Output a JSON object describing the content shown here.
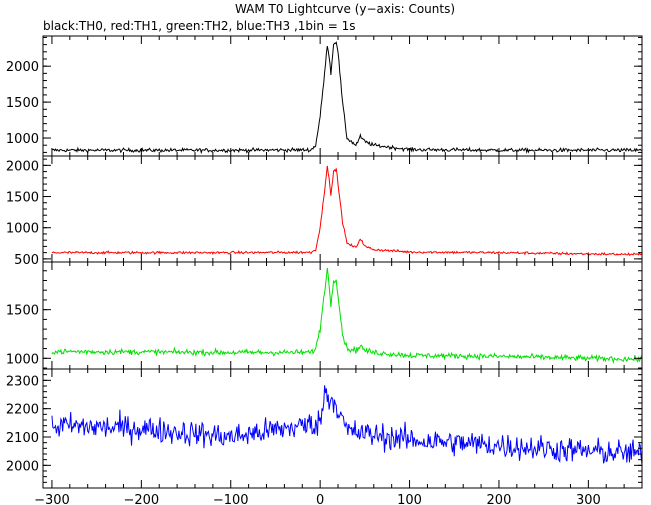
{
  "title": "WAM T0 Lightcurve (y−axis: Counts)",
  "subtitle": "black:TH0, red:TH1, green:TH2, blue:TH3 ,1bin = 1s",
  "chart_data": {
    "type": "line",
    "title": "WAM T0 Lightcurve (y−axis: Counts)",
    "subtitle": "black:TH0, red:TH1, green:TH2, blue:TH3 ,1bin = 1s",
    "xlabel": "",
    "ylabel": "Counts",
    "xlim": [
      -310,
      360
    ],
    "x_ticks": [
      -300,
      -200,
      -100,
      0,
      100,
      200,
      300
    ],
    "x_tick_labels": [
      "−300",
      "−200",
      "−100",
      "0",
      "100",
      "200",
      "300"
    ],
    "bin_seconds": 1,
    "panels": [
      {
        "channel": "TH0",
        "color": "#000000",
        "ylim": [
          750,
          2420
        ],
        "y_ticks": [
          1000,
          1500,
          2000
        ],
        "y_tick_labels": [
          "1000",
          "1500",
          "2000"
        ],
        "x": [
          -300,
          -100,
          -10,
          -5,
          0,
          5,
          8,
          10,
          12,
          15,
          18,
          20,
          25,
          30,
          40,
          45,
          50,
          60,
          100,
          200,
          300,
          360
        ],
        "y": [
          830,
          830,
          835,
          900,
          1300,
          1900,
          2300,
          2150,
          1900,
          2300,
          2350,
          2200,
          1500,
          1000,
          900,
          1020,
          950,
          900,
          840,
          830,
          830,
          830
        ],
        "noise": 25
      },
      {
        "channel": "TH1",
        "color": "#ff0000",
        "ylim": [
          450,
          2150
        ],
        "y_ticks": [
          500,
          1000,
          1500,
          2000
        ],
        "y_tick_labels": [
          "500",
          "1000",
          "1500",
          "2000"
        ],
        "x": [
          -300,
          -100,
          -10,
          -5,
          0,
          5,
          8,
          10,
          12,
          15,
          18,
          20,
          25,
          30,
          40,
          45,
          50,
          60,
          100,
          200,
          300,
          360
        ],
        "y": [
          600,
          600,
          605,
          650,
          1000,
          1600,
          2000,
          1800,
          1500,
          1900,
          1950,
          1700,
          1100,
          750,
          680,
          830,
          700,
          650,
          610,
          600,
          580,
          570
        ],
        "noise": 20
      },
      {
        "channel": "TH2",
        "color": "#00e000",
        "ylim": [
          890,
          1990
        ],
        "y_ticks": [
          1000,
          1500
        ],
        "y_tick_labels": [
          "1000",
          "1500"
        ],
        "x": [
          -300,
          -100,
          -10,
          -5,
          0,
          5,
          8,
          10,
          12,
          15,
          18,
          20,
          25,
          30,
          40,
          45,
          50,
          60,
          100,
          200,
          300,
          360
        ],
        "y": [
          1070,
          1060,
          1060,
          1100,
          1300,
          1700,
          1920,
          1750,
          1550,
          1800,
          1820,
          1650,
          1250,
          1100,
          1080,
          1130,
          1080,
          1060,
          1030,
          1020,
          1000,
          990
        ],
        "noise": 28
      },
      {
        "channel": "TH3",
        "color": "#0000ff",
        "ylim": [
          1920,
          2340
        ],
        "y_ticks": [
          2000,
          2100,
          2200,
          2300
        ],
        "y_tick_labels": [
          "2000",
          "2100",
          "2200",
          "2300"
        ],
        "x": [
          -300,
          -200,
          -100,
          0,
          5,
          10,
          15,
          20,
          30,
          100,
          200,
          300,
          360
        ],
        "y": [
          2140,
          2130,
          2100,
          2150,
          2260,
          2240,
          2230,
          2200,
          2120,
          2090,
          2070,
          2050,
          2040
        ],
        "noise": 45
      }
    ]
  }
}
